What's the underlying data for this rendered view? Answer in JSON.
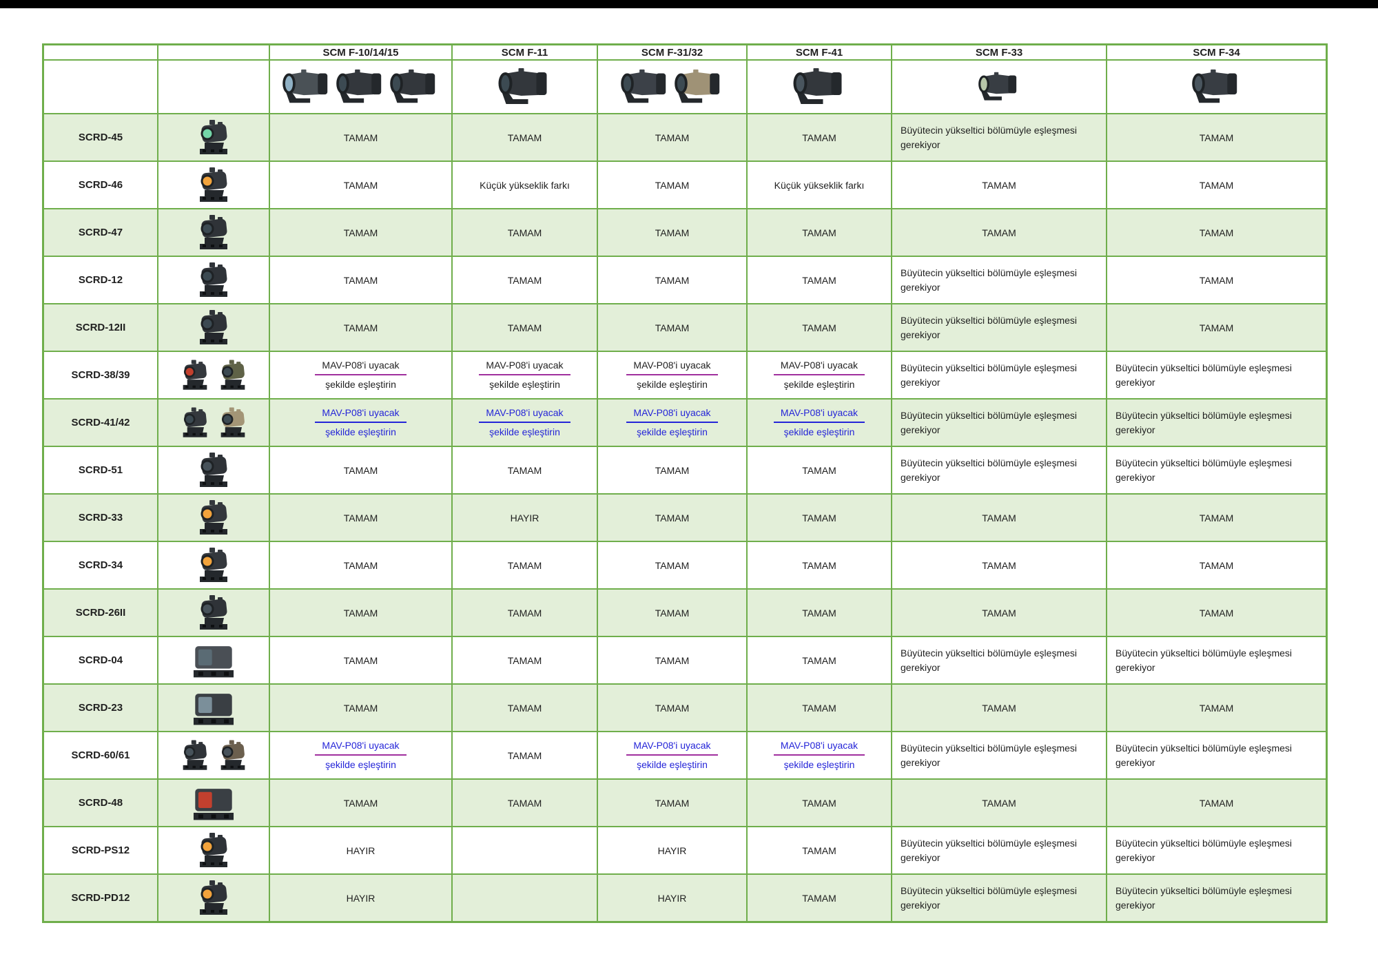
{
  "page": {
    "background_color": "#ffffff",
    "top_bar_color": "#000000"
  },
  "table": {
    "border_color": "#6fae4b",
    "row_green_color": "#e3efd9",
    "row_white_color": "#ffffff",
    "link_blue_color": "#2424d8",
    "underline_purple_color": "#a02f9e",
    "layout": {
      "label_row_h": 22,
      "image_row_h": 78,
      "data_row_h": 69
    },
    "cell_texts": {
      "ok": "TAMAM",
      "no": "HAYIR",
      "height_diff": "Küçük yükseklik farkı",
      "riser": "Büyütecin yükseltici bölümüyle eşleşmesi gerekiyor",
      "mav_line1": "MAV-P08'i uyacak",
      "mav_line2": "şekilde eşleştirin"
    },
    "columns": [
      {
        "key": "name",
        "label": "",
        "devices": []
      },
      {
        "key": "image",
        "label": "",
        "devices": []
      },
      {
        "key": "f10",
        "label": "SCM F-10/14/15",
        "size": 52,
        "devices": [
          {
            "type": "mag",
            "body": "#4a5156",
            "lens": "#8fb0c4"
          },
          {
            "type": "mag",
            "body": "#33373c",
            "lens": "#3c4a52"
          },
          {
            "type": "mag",
            "body": "#33373c",
            "lens": "#3c4a52"
          }
        ]
      },
      {
        "key": "f11",
        "label": "SCM F-11",
        "size": 56,
        "devices": [
          {
            "type": "mag",
            "body": "#33373c",
            "lens": "#3c4a52"
          }
        ]
      },
      {
        "key": "f31",
        "label": "SCM F-31/32",
        "size": 52,
        "devices": [
          {
            "type": "mag",
            "body": "#3c4148",
            "lens": "#3c4a52"
          },
          {
            "type": "mag",
            "body": "#9f9276",
            "lens": "#3c4a52"
          }
        ]
      },
      {
        "key": "f41",
        "label": "SCM F-41",
        "size": 56,
        "devices": [
          {
            "type": "mag",
            "body": "#33373c",
            "lens": "#49555e"
          }
        ]
      },
      {
        "key": "f33",
        "label": "SCM F-33",
        "size": 44,
        "devices": [
          {
            "type": "mag",
            "body": "#383d43",
            "lens": "#b7c6a8"
          }
        ]
      },
      {
        "key": "f34",
        "label": "SCM F-34",
        "size": 52,
        "devices": [
          {
            "type": "mag",
            "body": "#383d43",
            "lens": "#49555e"
          }
        ]
      }
    ],
    "rows": [
      {
        "name": "SCRD-45",
        "shade": "green",
        "devices": [
          {
            "type": "dot",
            "body": "#34383d",
            "lens": "#74d6a8"
          }
        ],
        "cells": [
          "ok",
          "ok",
          "ok",
          "ok",
          "riser",
          "ok"
        ]
      },
      {
        "name": "SCRD-46",
        "shade": "white",
        "devices": [
          {
            "type": "dot",
            "body": "#34383d",
            "lens": "#f2a33c"
          }
        ],
        "cells": [
          "ok",
          "hd",
          "ok",
          "hd",
          "ok",
          "ok"
        ]
      },
      {
        "name": "SCRD-47",
        "shade": "green",
        "devices": [
          {
            "type": "dot",
            "body": "#2f3338",
            "lens": "#3c4a52"
          }
        ],
        "cells": [
          "ok",
          "ok",
          "ok",
          "ok",
          "ok",
          "ok"
        ]
      },
      {
        "name": "SCRD-12",
        "shade": "white",
        "devices": [
          {
            "type": "dot",
            "body": "#2f3338",
            "lens": "#3c4a52"
          }
        ],
        "cells": [
          "ok",
          "ok",
          "ok",
          "ok",
          "riser",
          "ok"
        ]
      },
      {
        "name": "SCRD-12II",
        "shade": "green",
        "devices": [
          {
            "type": "dot",
            "body": "#2f3338",
            "lens": "#3c4a52"
          }
        ],
        "cells": [
          "ok",
          "ok",
          "ok",
          "ok",
          "riser",
          "ok"
        ]
      },
      {
        "name": "SCRD-38/39",
        "shade": "white",
        "devices": [
          {
            "type": "dot",
            "body": "#34383d",
            "lens": "#c2402e"
          },
          {
            "type": "dot",
            "body": "#5f6247",
            "lens": "#3c4a52"
          }
        ],
        "cells": [
          "mav_bp",
          "mav_bp",
          "mav_bp",
          "mav_bp",
          "riser",
          "riser"
        ]
      },
      {
        "name": "SCRD-41/42",
        "shade": "green",
        "devices": [
          {
            "type": "dot",
            "body": "#34383d",
            "lens": "#3c4a52"
          },
          {
            "type": "dot",
            "body": "#a39576",
            "lens": "#3c4a52"
          }
        ],
        "cells": [
          "mav_bb",
          "mav_bb",
          "mav_bb",
          "mav_bb",
          "riser",
          "riser"
        ]
      },
      {
        "name": "SCRD-51",
        "shade": "white",
        "devices": [
          {
            "type": "dot",
            "body": "#2f3338",
            "lens": "#47525a"
          }
        ],
        "cells": [
          "ok",
          "ok",
          "ok",
          "ok",
          "riser",
          "riser"
        ]
      },
      {
        "name": "SCRD-33",
        "shade": "green",
        "devices": [
          {
            "type": "dot",
            "body": "#34383d",
            "lens": "#f2a33c"
          }
        ],
        "cells": [
          "ok",
          "no",
          "ok",
          "ok",
          "ok",
          "ok"
        ]
      },
      {
        "name": "SCRD-34",
        "shade": "white",
        "devices": [
          {
            "type": "dot",
            "body": "#34383d",
            "lens": "#f2a33c"
          }
        ],
        "cells": [
          "ok",
          "ok",
          "ok",
          "ok",
          "ok",
          "ok"
        ]
      },
      {
        "name": "SCRD-26II",
        "shade": "green",
        "devices": [
          {
            "type": "dot",
            "body": "#2f3338",
            "lens": "#47525a"
          }
        ],
        "cells": [
          "ok",
          "ok",
          "ok",
          "ok",
          "ok",
          "ok"
        ]
      },
      {
        "name": "SCRD-04",
        "shade": "white",
        "devices": [
          {
            "type": "holo",
            "body": "#4a4f55",
            "lens": "#5a6b74"
          }
        ],
        "cells": [
          "ok",
          "ok",
          "ok",
          "ok",
          "riser",
          "riser"
        ]
      },
      {
        "name": "SCRD-23",
        "shade": "green",
        "devices": [
          {
            "type": "holo",
            "body": "#3a3f44",
            "lens": "#7b8f9a"
          }
        ],
        "cells": [
          "ok",
          "ok",
          "ok",
          "ok",
          "ok",
          "ok"
        ]
      },
      {
        "name": "SCRD-60/61",
        "shade": "white",
        "devices": [
          {
            "type": "dot",
            "body": "#2f3338",
            "lens": "#47525a"
          },
          {
            "type": "dot",
            "body": "#6b5f4e",
            "lens": "#47525a"
          }
        ],
        "cells": [
          "mav_blp",
          "ok",
          "mav_blp",
          "mav_blp",
          "riser",
          "riser"
        ]
      },
      {
        "name": "SCRD-48",
        "shade": "green",
        "devices": [
          {
            "type": "holo",
            "body": "#3a3f44",
            "lens": "#c2402e"
          }
        ],
        "cells": [
          "ok",
          "ok",
          "ok",
          "ok",
          "ok",
          "ok"
        ]
      },
      {
        "name": "SCRD-PS12",
        "shade": "white",
        "devices": [
          {
            "type": "dot",
            "body": "#2f3338",
            "lens": "#f2a33c"
          }
        ],
        "cells": [
          "no",
          "",
          "no",
          "ok",
          "riser",
          "riser"
        ]
      },
      {
        "name": "SCRD-PD12",
        "shade": "green",
        "devices": [
          {
            "type": "dot",
            "body": "#2f3338",
            "lens": "#f2a33c"
          }
        ],
        "cells": [
          "no",
          "",
          "no",
          "ok",
          "riser",
          "riser"
        ]
      }
    ]
  }
}
